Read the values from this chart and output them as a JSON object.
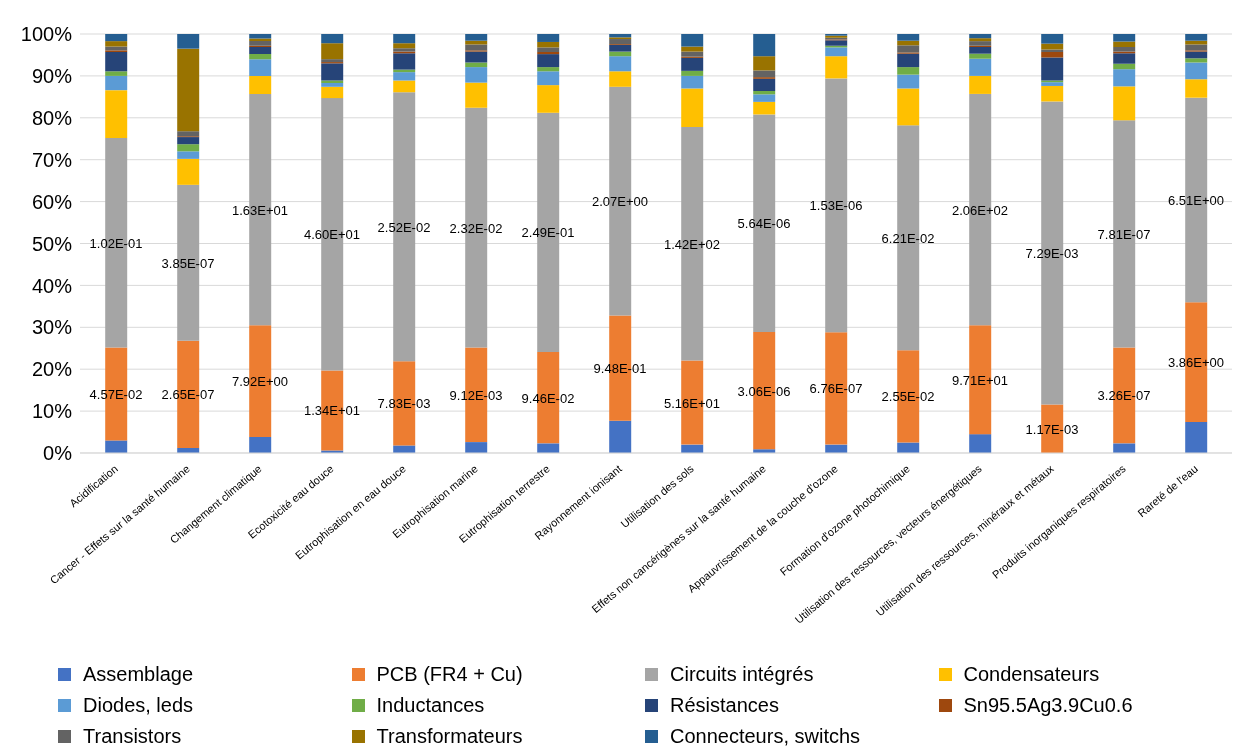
{
  "chart_data": {
    "type": "bar",
    "stacked": true,
    "grid": "y",
    "legend": "bottom",
    "categories": [
      "Acidification",
      "Cancer - Effets sur la santé humaine",
      "Changement climatique",
      "Ecotoxicité eau douce",
      "Eutrophisation en eau douce",
      "Eutrophisation marine",
      "Eutrophisation terrestre",
      "Rayonnement ionisant",
      "Utilisation des sols",
      "Effets non cancérigènes sur la santé humaine",
      "Appauvrissement de la couche d'ozone",
      "Formation d'ozone photochimique",
      "Utilisation des ressources, vecteurs énergétiques",
      "Utilisation des ressources, minéraux et métaux",
      "Produits inorganiques respiratoires",
      "Rareté de l'eau"
    ],
    "ylim": [
      0,
      100
    ],
    "yticks": [
      {
        "value": 0,
        "label": "0%"
      },
      {
        "value": 10,
        "label": "10%"
      },
      {
        "value": 20,
        "label": "20%"
      },
      {
        "value": 30,
        "label": "30%"
      },
      {
        "value": 40,
        "label": "40%"
      },
      {
        "value": 50,
        "label": "50%"
      },
      {
        "value": 60,
        "label": "60%"
      },
      {
        "value": 70,
        "label": "70%"
      },
      {
        "value": 80,
        "label": "80%"
      },
      {
        "value": 90,
        "label": "90%"
      },
      {
        "value": 100,
        "label": "100%"
      }
    ],
    "series": [
      {
        "name": "Assemblage",
        "color": "#4472c4",
        "values": [
          3,
          1.2,
          3.8,
          0.6,
          1.8,
          2.6,
          2.3,
          7.7,
          2,
          0.9,
          2,
          2.5,
          4.5,
          null,
          2.3,
          7.4
        ]
      },
      {
        "name": "PCB (FR4 + Cu)",
        "color": "#ed7d31",
        "values": [
          22.2,
          25.6,
          26.7,
          19.1,
          20.1,
          22.6,
          21.8,
          25.1,
          20.1,
          28,
          26.8,
          22,
          26,
          11.6,
          22.9,
          28.6
        ]
      },
      {
        "name": "Circuits intégrés",
        "color": "#a5a5a5",
        "values": [
          50,
          37.2,
          55.2,
          65,
          64.2,
          57.2,
          57.1,
          54.6,
          55.7,
          51.9,
          60.6,
          53.7,
          55.2,
          72.3,
          54.2,
          48.8
        ]
      },
      {
        "name": "Condensateurs",
        "color": "#ffc000",
        "values": [
          11.4,
          6.2,
          4.3,
          2.7,
          2.8,
          6,
          6.6,
          3.7,
          9.2,
          3,
          5.3,
          8.8,
          4.3,
          3.7,
          8.1,
          4.4
        ]
      },
      {
        "name": "Diodes, leds",
        "color": "#5b9bd5",
        "values": [
          3.4,
          1.8,
          4,
          0.9,
          2,
          3.7,
          3.3,
          3.6,
          3,
          1.8,
          2.1,
          3.3,
          4.1,
          0.9,
          4.1,
          4
        ]
      },
      {
        "name": "Inductances",
        "color": "#70ad47",
        "values": [
          1.1,
          1.7,
          1.2,
          0.6,
          0.6,
          1.1,
          1,
          1.1,
          1.2,
          0.8,
          0.4,
          1.8,
          1.2,
          0.4,
          1.3,
          1
        ]
      },
      {
        "name": "Résistances",
        "color": "#264478",
        "values": [
          4.6,
          1.7,
          1.7,
          4.1,
          3.9,
          2.6,
          3.1,
          1.6,
          3.1,
          2.9,
          1.3,
          3.2,
          1.6,
          5.5,
          2.5,
          1.6
        ]
      },
      {
        "name": "Sn95.5Ag3.9Cu0.6",
        "color": "#9e480e",
        "values": [
          0.4,
          0.2,
          0.3,
          0.3,
          0.4,
          0.3,
          0.5,
          0.2,
          0.3,
          0.4,
          0.2,
          0.3,
          0.3,
          1.3,
          0.4,
          0.3
        ]
      },
      {
        "name": "Transistors",
        "color": "#636363",
        "values": [
          0.9,
          1.2,
          1.1,
          0.7,
          0.8,
          1.4,
          1.1,
          1.2,
          1.2,
          1.6,
          0.4,
          1.7,
          1.1,
          0.6,
          1.1,
          1.4
        ]
      },
      {
        "name": "Transformateurs",
        "color": "#997300",
        "values": [
          1.3,
          19.7,
          0.6,
          3.8,
          1.2,
          0.9,
          1.3,
          0.4,
          1.2,
          3.4,
          0.5,
          1.1,
          0.7,
          1.4,
          1.3,
          0.9
        ]
      },
      {
        "name": "Connecteurs, switchs",
        "color": "#255e91",
        "values": [
          1.7,
          3.5,
          1.1,
          2.2,
          2.2,
          1.6,
          1.9,
          0.8,
          3,
          5.3,
          0.4,
          1.6,
          1,
          2.3,
          1.8,
          1.6
        ]
      }
    ],
    "annotations": [
      "4.57E-02",
      "2.65E-07",
      "7.92E+00",
      "1.34E+01",
      "7.83E-03",
      "9.12E-03",
      "9.46E-02",
      "9.48E-01",
      "5.16E+01",
      "3.06E-06",
      "6.76E-07",
      "2.55E-02",
      "9.71E+01",
      "1.17E-03",
      "3.26E-07",
      "3.86E+00",
      "1.02E-01",
      "3.85E-07",
      "1.63E+01",
      "4.60E+01",
      "2.52E-02",
      "2.32E-02",
      "2.49E-01",
      "2.07E+00",
      "1.42E+02",
      "5.64E-06",
      "1.53E-06",
      "6.21E-02",
      "2.06E+02",
      "7.29E-03",
      "7.81E-07",
      "6.51E+00"
    ]
  }
}
